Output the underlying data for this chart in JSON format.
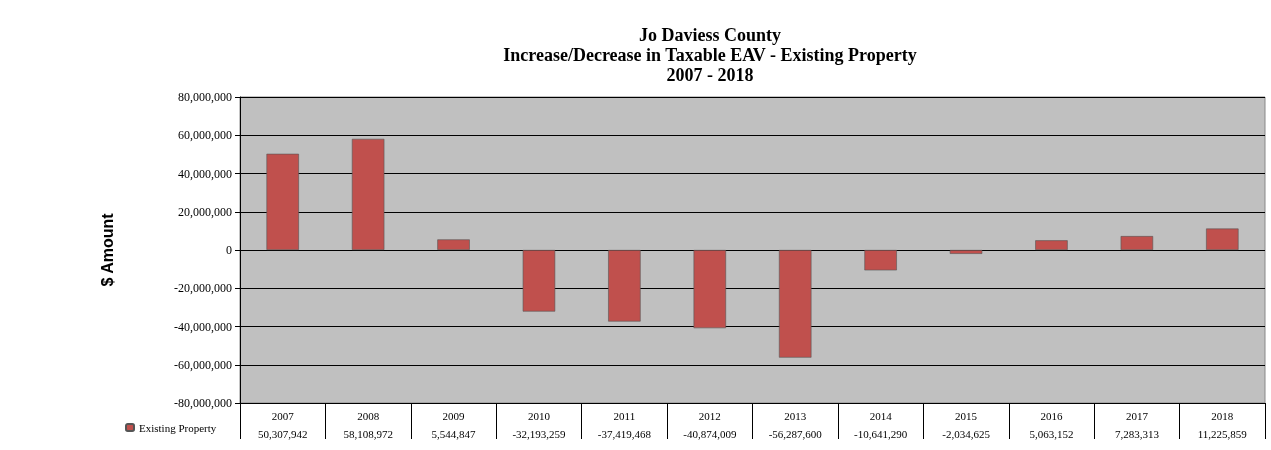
{
  "chart_data": {
    "type": "bar",
    "title": "Jo Daviess County\nIncrease/Decrease in Taxable EAV - Existing Property\n2007 - 2018",
    "ylabel": "$ Amount",
    "categories": [
      "2007",
      "2008",
      "2009",
      "2010",
      "2011",
      "2012",
      "2013",
      "2014",
      "2015",
      "2016",
      "2017",
      "2018"
    ],
    "series": [
      {
        "name": "Existing Property",
        "color": "#c0504d",
        "values": [
          50307942,
          58108972,
          5544847,
          -32193259,
          -37419468,
          -40874009,
          -56287600,
          -10641290,
          -2034625,
          5063152,
          7283313,
          11225859
        ],
        "value_labels": [
          "50,307,942",
          "58,108,972",
          "5,544,847",
          "-32,193,259",
          "-37,419,468",
          "-40,874,009",
          "-56,287,600",
          "-10,641,290",
          "-2,034,625",
          "5,063,152",
          "7,283,313",
          "11,225,859"
        ]
      }
    ],
    "ylim": [
      -80000000,
      80000000
    ],
    "yticks": [
      {
        "value": -80000000,
        "label": "-80,000,000"
      },
      {
        "value": -60000000,
        "label": "-60,000,000"
      },
      {
        "value": -40000000,
        "label": "-40,000,000"
      },
      {
        "value": -20000000,
        "label": "-20,000,000"
      },
      {
        "value": 0,
        "label": "0"
      },
      {
        "value": 20000000,
        "label": "20,000,000"
      },
      {
        "value": 40000000,
        "label": "40,000,000"
      },
      {
        "value": 60000000,
        "label": "60,000,000"
      },
      {
        "value": 80000000,
        "label": "80,000,000"
      }
    ],
    "grid": "y",
    "legend": "bottom left"
  }
}
